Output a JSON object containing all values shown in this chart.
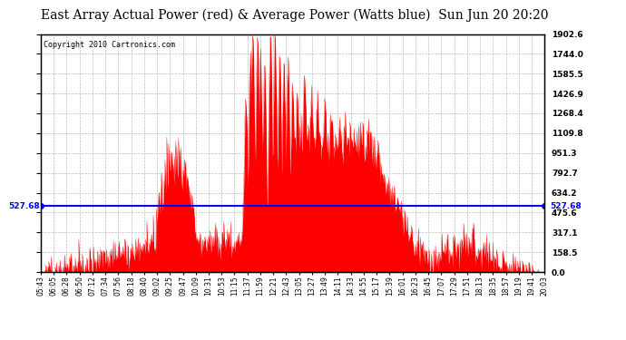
{
  "title": "East Array Actual Power (red) & Average Power (Watts blue)  Sun Jun 20 20:20",
  "avg_power": 527.68,
  "y_max": 1902.6,
  "y_min": 0.0,
  "y_ticks": [
    0.0,
    158.5,
    317.1,
    475.6,
    634.2,
    792.7,
    951.3,
    1109.8,
    1268.4,
    1426.9,
    1585.5,
    1744.0,
    1902.6
  ],
  "x_tick_labels": [
    "05:43",
    "06:05",
    "06:28",
    "06:50",
    "07:12",
    "07:34",
    "07:56",
    "08:18",
    "08:40",
    "09:02",
    "09:25",
    "09:47",
    "10:09",
    "10:31",
    "10:53",
    "11:15",
    "11:37",
    "11:59",
    "12:21",
    "12:43",
    "13:05",
    "13:27",
    "13:49",
    "14:11",
    "14:33",
    "14:55",
    "15:17",
    "15:39",
    "16:01",
    "16:23",
    "16:45",
    "17:07",
    "17:29",
    "17:51",
    "18:13",
    "18:35",
    "18:57",
    "19:19",
    "19:41",
    "20:03"
  ],
  "fill_color": "#FF0000",
  "line_color": "#0000FF",
  "bg_color": "#FFFFFF",
  "grid_color": "#AAAAAA",
  "copyright_text": "Copyright 2010 Cartronics.com",
  "title_fontsize": 10,
  "avg_label": "527.68"
}
